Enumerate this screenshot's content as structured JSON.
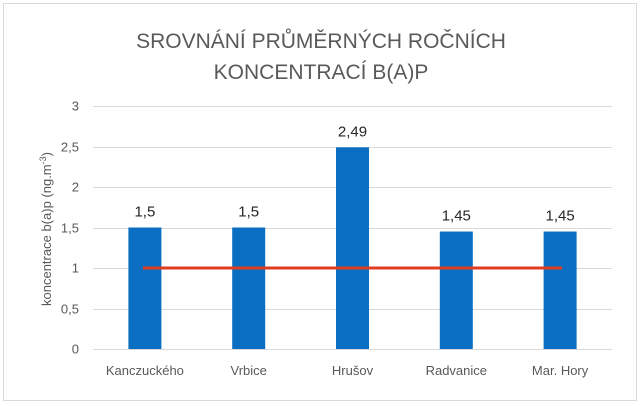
{
  "chart_data": {
    "type": "bar",
    "title_lines": [
      "SROVNÁNÍ PRŮMĚRNÝCH ROČNÍCH",
      "KONCENTRACÍ B(A)P"
    ],
    "ylabel": "koncentrace b(a)p (ng.m",
    "ylabel_superscript": "-3",
    "ylabel_suffix": ")",
    "categories": [
      "Kanczuckého",
      "Vrbice",
      "Hrušov",
      "Radvanice",
      "Mar. Hory"
    ],
    "values": [
      1.5,
      1.5,
      2.49,
      1.45,
      1.45
    ],
    "data_labels": [
      "1,5",
      "1,5",
      "2,49",
      "1,45",
      "1,45"
    ],
    "ylim": [
      0,
      3
    ],
    "yticks": [
      0,
      0.5,
      1,
      1.5,
      2,
      2.5,
      3
    ],
    "ytick_labels": [
      "0",
      "0,5",
      "1",
      "1,5",
      "2",
      "2,5",
      "3"
    ],
    "grid": true,
    "limit_line": {
      "value": 1,
      "color": "#e03c1f"
    },
    "colors": {
      "bar": "#0a6fc2",
      "grid": "#d9d9d9",
      "title": "#595959",
      "tick": "#595959",
      "data_label": "#262626"
    }
  }
}
